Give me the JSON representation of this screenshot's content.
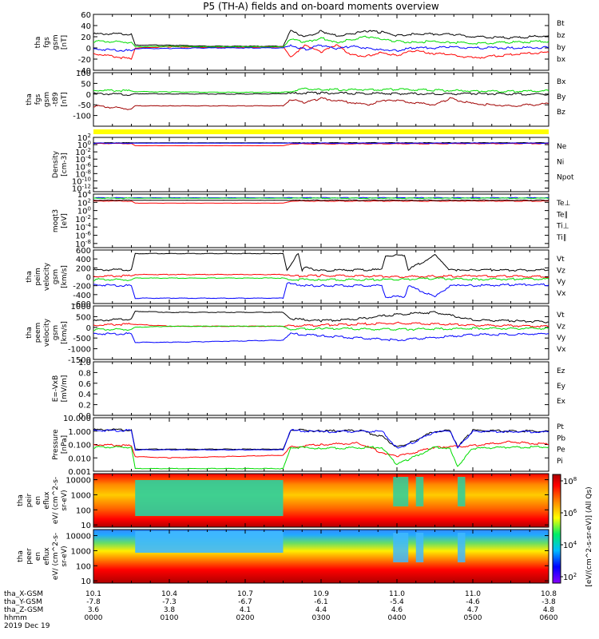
{
  "title": "P5 (TH-A) fields and on-board moments overview",
  "colors": {
    "black": "#000000",
    "red": "#ff0000",
    "green": "#00dd00",
    "blue": "#0000ff",
    "darkred": "#a00000",
    "yellow": "#ffff00"
  },
  "footer": {
    "row_labels": [
      "tha_X-GSM",
      "tha_Y-GSM",
      "tha_Z-GSM",
      "hhmm",
      "2019 Dec 19"
    ],
    "columns": [
      {
        "x": "10.1",
        "y": "-7.8",
        "z": "3.6",
        "hhmm": "0000"
      },
      {
        "x": "10.4",
        "y": "-7.3",
        "z": "3.8",
        "hhmm": "0100"
      },
      {
        "x": "10.7",
        "y": "-6.7",
        "z": "4.1",
        "hhmm": "0200"
      },
      {
        "x": "10.9",
        "y": "-6.1",
        "z": "4.4",
        "hhmm": "0300"
      },
      {
        "x": "11.0",
        "y": "-5.4",
        "z": "4.6",
        "hhmm": "0400"
      },
      {
        "x": "11.0",
        "y": "-4.6",
        "z": "4.7",
        "hhmm": "0500"
      },
      {
        "x": "10.8",
        "y": "-3.8",
        "z": "4.8",
        "hhmm": "0600"
      }
    ]
  },
  "colorbar": {
    "label": "[eV/(cm^2-s-sr-eV)] (All Qs)",
    "ticks": [
      "10^2",
      "10^4",
      "10^6",
      "10^8"
    ]
  },
  "chart_data": [
    {
      "type": "line",
      "title": "P5 (TH-A) fields and on-board moments overview",
      "ylabel": "tha fgs gsm [nT]",
      "yticks": [
        "-40",
        "-20",
        "0",
        "20",
        "40",
        "60"
      ],
      "ylim": [
        -40,
        60
      ],
      "x_range_hours": [
        0,
        6
      ],
      "series": [
        {
          "name": "Bt",
          "color": "black",
          "x": [
            0,
            0.5,
            0.55,
            1,
            1.5,
            2,
            2.5,
            2.6,
            2.8,
            3,
            3.2,
            3.4,
            3.6,
            3.8,
            4,
            4.2,
            4.5,
            4.7,
            5,
            5.5,
            6
          ],
          "y": [
            25,
            25,
            5,
            5,
            3,
            3,
            3,
            30,
            20,
            30,
            22,
            25,
            30,
            28,
            22,
            25,
            25,
            25,
            20,
            18,
            22
          ]
        },
        {
          "name": "bz",
          "color": "red",
          "x": [
            0,
            0.5,
            0.55,
            1,
            1.5,
            2,
            2.5,
            2.6,
            2.8,
            3,
            3.2,
            3.4,
            3.6,
            3.8,
            4,
            4.2,
            4.5,
            4.7,
            5,
            5.5,
            6
          ],
          "y": [
            -10,
            -20,
            0,
            2,
            1,
            1,
            2,
            -15,
            5,
            -8,
            5,
            -12,
            -15,
            -8,
            -14,
            -5,
            -10,
            -12,
            -18,
            -12,
            -8
          ]
        },
        {
          "name": "by",
          "color": "green",
          "x": [
            0,
            0.5,
            0.55,
            1,
            1.5,
            2,
            2.5,
            2.6,
            2.8,
            3,
            3.2,
            3.4,
            3.6,
            3.8,
            4,
            4.2,
            4.5,
            4.7,
            5,
            5.5,
            6
          ],
          "y": [
            12,
            10,
            2,
            3,
            2,
            2,
            2,
            15,
            10,
            18,
            10,
            15,
            20,
            15,
            12,
            10,
            12,
            10,
            8,
            10,
            12
          ]
        },
        {
          "name": "bx",
          "color": "blue",
          "x": [
            0,
            0.5,
            0.55,
            1,
            1.5,
            2,
            2.5,
            2.6,
            2.8,
            3,
            3.2,
            3.4,
            3.6,
            3.8,
            4,
            4.2,
            4.5,
            4.7,
            5,
            5.5,
            6
          ],
          "y": [
            -2,
            -5,
            -1,
            -1,
            0,
            0,
            0,
            5,
            -3,
            5,
            -2,
            3,
            0,
            -3,
            -5,
            0,
            0,
            2,
            0,
            0,
            1
          ]
        }
      ]
    },
    {
      "type": "line",
      "ylabel": "tha fgs gsm -t89 [nT]",
      "yticks": [
        "-100",
        "-50",
        "0",
        "50",
        "100"
      ],
      "ylim": [
        -150,
        100
      ],
      "x_range_hours": [
        0,
        6
      ],
      "series": [
        {
          "name": "Bx",
          "color": "black",
          "x": [
            0,
            0.5,
            0.55,
            1,
            2,
            2.5,
            2.8,
            3,
            3.5,
            4,
            4.5,
            5,
            5.5,
            6
          ],
          "y": [
            2,
            -2,
            2,
            1,
            0,
            2,
            5,
            5,
            3,
            2,
            1,
            2,
            0,
            0
          ]
        },
        {
          "name": "By",
          "color": "green",
          "x": [
            0,
            0.5,
            0.55,
            1,
            2,
            2.5,
            2.8,
            3,
            3.5,
            4,
            4.5,
            5,
            5.5,
            6
          ],
          "y": [
            18,
            15,
            12,
            10,
            8,
            8,
            25,
            22,
            20,
            22,
            18,
            15,
            12,
            15
          ]
        },
        {
          "name": "Bz",
          "color": "darkred",
          "x": [
            0,
            0.5,
            0.55,
            1,
            2,
            2.5,
            2.6,
            2.8,
            3,
            3.3,
            3.6,
            3.9,
            4.2,
            4.5,
            4.7,
            5,
            5.5,
            6
          ],
          "y": [
            -55,
            -70,
            -55,
            -55,
            -55,
            -55,
            -25,
            -40,
            -20,
            -35,
            -50,
            -25,
            -40,
            -50,
            -20,
            -45,
            -55,
            -45
          ]
        }
      ]
    },
    {
      "type": "line",
      "ylabel": "Density [cm-3]",
      "yticks": [
        "10^2",
        "10^0",
        "10^-2",
        "10^-4",
        "10^-6",
        "10^-8",
        "10^-10",
        "10^-12"
      ],
      "ylim_log10": [
        -13,
        2
      ],
      "x_range_hours": [
        0,
        6
      ],
      "series": [
        {
          "name": "Ne",
          "color": "red",
          "x": [
            0,
            0.5,
            0.55,
            2.5,
            2.6,
            6
          ],
          "y_log10": [
            0.3,
            0.3,
            -0.3,
            -0.3,
            0.2,
            0.3
          ]
        },
        {
          "name": "Ni",
          "color": "black",
          "x": [
            0,
            6
          ],
          "y_log10": [
            0.5,
            0.5
          ]
        },
        {
          "name": "Npot",
          "color": "blue",
          "x": [
            0,
            6
          ],
          "y_log10": [
            0.4,
            0.4
          ]
        }
      ]
    },
    {
      "type": "line",
      "ylabel": "moqt3 [eV]",
      "yticks": [
        "10^4",
        "10^2",
        "10^0",
        "10^-2",
        "10^-4",
        "10^-6",
        "10^-8"
      ],
      "ylim_log10": [
        -9,
        4
      ],
      "x_range_hours": [
        0,
        6
      ],
      "series": [
        {
          "name": "Te⊥",
          "color": "red",
          "x": [
            0,
            0.5,
            0.55,
            2.5,
            2.6,
            6
          ],
          "y_log10": [
            2.3,
            2.3,
            1.8,
            1.8,
            2.3,
            2.3
          ]
        },
        {
          "name": "Te∥",
          "color": "black",
          "x": [
            0,
            6
          ],
          "y_log10": [
            2.5,
            2.5
          ]
        },
        {
          "name": "Ti⊥",
          "color": "blue",
          "x": [
            0,
            6
          ],
          "y_log10": [
            3.1,
            3.1
          ]
        },
        {
          "name": "Ti∥",
          "color": "green",
          "x": [
            0,
            6
          ],
          "y_log10": [
            3.0,
            3.0
          ]
        }
      ]
    },
    {
      "type": "line",
      "ylabel": "tha peim velocity gsm [km/s]",
      "yticks": [
        "-600",
        "-400",
        "-200",
        "0",
        "200",
        "400",
        "600"
      ],
      "ylim": [
        -600,
        600
      ],
      "x_range_hours": [
        0,
        6
      ],
      "series": [
        {
          "name": "Vt",
          "color": "black",
          "x": [
            0,
            0.5,
            0.55,
            2.5,
            2.55,
            2.7,
            2.75,
            2.8,
            3,
            3.8,
            3.85,
            4.1,
            4.15,
            4.5,
            4.7,
            4.8,
            5,
            5.5,
            6
          ],
          "y": [
            150,
            160,
            520,
            520,
            150,
            520,
            150,
            200,
            140,
            160,
            480,
            480,
            160,
            480,
            150,
            150,
            160,
            150,
            150
          ]
        },
        {
          "name": "Vz",
          "color": "red",
          "x": [
            0,
            0.5,
            0.55,
            2.5,
            2.6,
            3,
            4,
            4.5,
            5,
            5.5,
            6
          ],
          "y": [
            10,
            20,
            50,
            50,
            10,
            30,
            0,
            10,
            20,
            10,
            0
          ]
        },
        {
          "name": "Vy",
          "color": "green",
          "x": [
            0,
            0.5,
            0.55,
            2.5,
            2.6,
            3,
            4,
            4.5,
            5,
            5.5,
            6
          ],
          "y": [
            -60,
            -70,
            -30,
            -30,
            -60,
            -70,
            -60,
            -40,
            -60,
            -50,
            -50
          ]
        },
        {
          "name": "Vx",
          "color": "blue",
          "x": [
            0,
            0.5,
            0.55,
            2.5,
            2.55,
            2.8,
            3,
            3.8,
            3.85,
            4.1,
            4.15,
            4.5,
            4.7,
            4.8,
            5,
            5.5,
            6
          ],
          "y": [
            -180,
            -200,
            -480,
            -480,
            -150,
            -200,
            -200,
            -200,
            -450,
            -450,
            -200,
            -450,
            -200,
            -180,
            -200,
            -180,
            -180
          ]
        }
      ]
    },
    {
      "type": "line",
      "ylabel": "tha peem velocity gsm [km/s]",
      "yticks": [
        "-1500",
        "-1000",
        "-500",
        "0",
        "500",
        "1000"
      ],
      "ylim": [
        -1500,
        1000
      ],
      "x_range_hours": [
        0,
        6
      ],
      "series": [
        {
          "name": "Vt",
          "color": "black",
          "x": [
            0,
            0.5,
            0.55,
            1,
            2.5,
            2.6,
            3,
            3.5,
            4,
            4.5,
            5,
            5.5,
            6
          ],
          "y": [
            300,
            400,
            750,
            700,
            700,
            400,
            300,
            400,
            600,
            700,
            350,
            300,
            250
          ]
        },
        {
          "name": "Vz",
          "color": "red",
          "x": [
            0,
            0.5,
            1,
            2.5,
            3,
            4,
            5,
            6
          ],
          "y": [
            100,
            150,
            50,
            50,
            100,
            200,
            100,
            50
          ]
        },
        {
          "name": "Vy",
          "color": "green",
          "x": [
            0,
            0.5,
            0.55,
            1,
            2.5,
            2.6,
            3,
            4,
            5,
            6
          ],
          "y": [
            -100,
            -100,
            0,
            50,
            50,
            -100,
            -50,
            -100,
            -50,
            -50
          ]
        },
        {
          "name": "Vx",
          "color": "blue",
          "x": [
            0,
            0.5,
            0.55,
            1,
            2.5,
            2.6,
            3,
            4,
            5,
            6
          ],
          "y": [
            -300,
            -300,
            -700,
            -700,
            -600,
            -300,
            -400,
            -600,
            -350,
            -300
          ]
        }
      ]
    },
    {
      "type": "line",
      "ylabel": "E=-VxB [mV/m]",
      "yticks": [
        "0.0",
        "0.2",
        "0.4",
        "0.6",
        "0.8",
        "1.0"
      ],
      "ylim": [
        0,
        1
      ],
      "x_range_hours": [
        0,
        6
      ],
      "series": [
        {
          "name": "Ez",
          "color": "red",
          "x": [],
          "y": []
        },
        {
          "name": "Ey",
          "color": "green",
          "x": [],
          "y": []
        },
        {
          "name": "Ex",
          "color": "blue",
          "x": [],
          "y": []
        }
      ]
    },
    {
      "type": "line",
      "ylabel": "Pressure [nPa]",
      "yticks": [
        "0.001",
        "0.010",
        "0.100",
        "1.000",
        "10.000"
      ],
      "ylim_log10": [
        -3,
        1
      ],
      "x_range_hours": [
        0,
        6
      ],
      "series": [
        {
          "name": "Pt",
          "color": "black",
          "x": [
            0,
            0.5,
            0.55,
            2.5,
            2.6,
            3,
            3.5,
            3.8,
            4,
            4.2,
            4.5,
            4.7,
            4.8,
            5,
            5.5,
            6
          ],
          "y_log10": [
            0.1,
            0.1,
            -1.35,
            -1.35,
            0.1,
            0.0,
            0.05,
            -0.4,
            -1.2,
            -0.8,
            0.0,
            0.05,
            -1.2,
            0.05,
            0.0,
            0.0
          ]
        },
        {
          "name": "Pb",
          "color": "red",
          "x": [
            0,
            0.5,
            0.55,
            1,
            2.5,
            2.6,
            3,
            3.5,
            3.8,
            4,
            4.3,
            4.5,
            5,
            5.5,
            6
          ],
          "y_log10": [
            -1,
            -1.1,
            -1.9,
            -2,
            -1.8,
            -1.2,
            -1.0,
            -0.9,
            -1.6,
            -1.9,
            -1.5,
            -1.2,
            -1.1,
            -0.8,
            -1.0
          ]
        },
        {
          "name": "Pe",
          "color": "green",
          "x": [
            0,
            0.5,
            0.55,
            2.5,
            2.6,
            3,
            3.8,
            4,
            4.2,
            4.5,
            4.7,
            4.8,
            5,
            5.5,
            6
          ],
          "y_log10": [
            -1.2,
            -1.2,
            -2.8,
            -2.8,
            -1.2,
            -1.3,
            -1.2,
            -2.5,
            -2.0,
            -1.2,
            -1.3,
            -2.6,
            -1.3,
            -1.2,
            -1.2
          ]
        },
        {
          "name": "Pi",
          "color": "blue",
          "x": [
            0,
            0.5,
            0.55,
            2.5,
            2.6,
            3,
            3.8,
            4,
            4.2,
            4.5,
            4.7,
            4.8,
            5,
            5.5,
            6
          ],
          "y_log10": [
            0.05,
            0.05,
            -1.4,
            -1.4,
            0.05,
            -0.05,
            0.0,
            -1.25,
            -0.9,
            -0.05,
            0.0,
            -1.25,
            0.0,
            -0.05,
            -0.05
          ]
        }
      ]
    },
    {
      "type": "heatmap",
      "ylabel": "tha peir en eflux eV/ (cm^2-s- sr-eV)",
      "yticks": [
        "10",
        "100",
        "1000",
        "10000"
      ],
      "ylim_log10": [
        0.85,
        4.4
      ],
      "x_range_hours": [
        0,
        6
      ]
    },
    {
      "type": "heatmap",
      "ylabel": "tha peer en eflux eV/ (cm^2-s- sr-eV)",
      "yticks": [
        "10",
        "100",
        "1000",
        "10000"
      ],
      "ylim_log10": [
        0.85,
        4.4
      ],
      "x_range_hours": [
        0,
        6
      ]
    }
  ]
}
